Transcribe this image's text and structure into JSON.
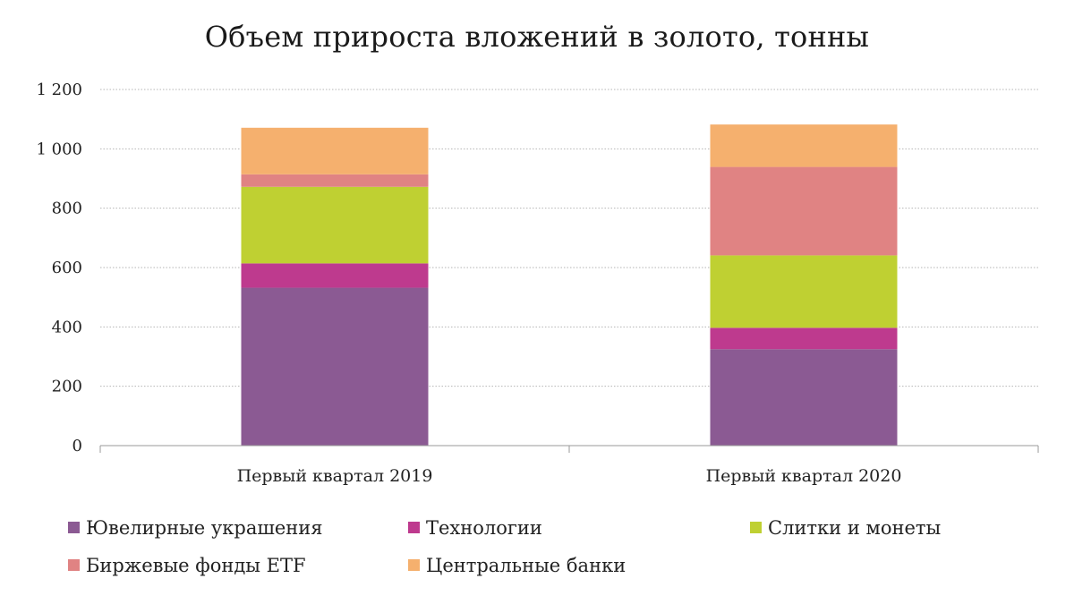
{
  "chart_data": {
    "type": "bar",
    "stacked": true,
    "title": "Объем прироста вложений в золото, тонны",
    "xlabel": "",
    "ylabel": "",
    "ylim": [
      0,
      1200
    ],
    "yticks": [
      0,
      200,
      400,
      600,
      800,
      1000,
      1200
    ],
    "ytick_labels": [
      "0",
      "200",
      "400",
      "600",
      "800",
      "1 000",
      "1 200"
    ],
    "categories": [
      "Первый квартал 2019",
      "Первый квартал 2020"
    ],
    "grid": "horizontal dotted",
    "legend_position": "bottom",
    "series": [
      {
        "name": "Ювелирные украшения",
        "color": "#8B5A93",
        "values": [
          532,
          325
        ]
      },
      {
        "name": "Технологии",
        "color": "#BE3A8E",
        "values": [
          82,
          72
        ]
      },
      {
        "name": "Слитки и монеты",
        "color": "#BFD032",
        "values": [
          258,
          244
        ]
      },
      {
        "name": "Биржевые фонды ETF",
        "color": "#E08383",
        "values": [
          42,
          298
        ]
      },
      {
        "name": "Центральные банки",
        "color": "#F5B06E",
        "values": [
          157,
          143
        ]
      }
    ]
  }
}
